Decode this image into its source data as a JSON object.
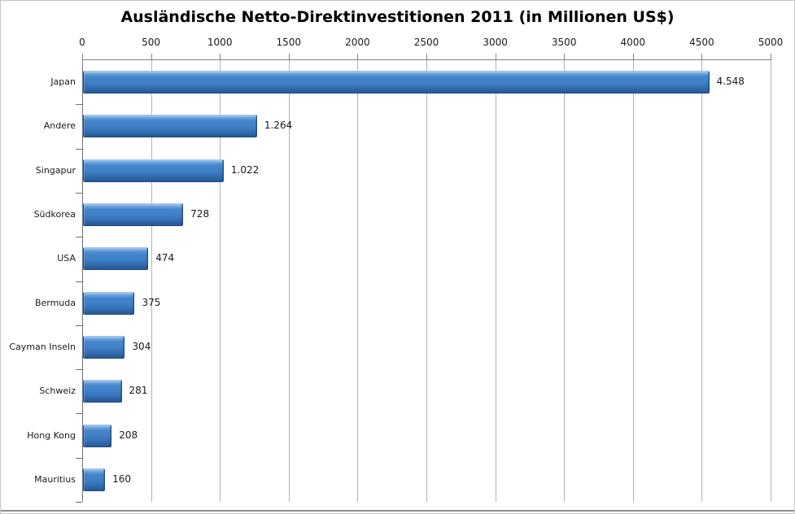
{
  "chart_data": {
    "type": "bar",
    "orientation": "horizontal",
    "title": "Ausländische Netto-Direktinvestitionen 2011 (in Millionen US$)",
    "categories": [
      "Japan",
      "Andere",
      "Singapur",
      "Südkorea",
      "USA",
      "Bermuda",
      "Cayman Inseln",
      "Schweiz",
      "Hong Kong",
      "Mauritius"
    ],
    "values": [
      4548,
      1264,
      1022,
      728,
      474,
      375,
      304,
      281,
      208,
      160
    ],
    "value_labels": [
      "4.548",
      "1.264",
      "1.022",
      "728",
      "474",
      "375",
      "304",
      "281",
      "208",
      "160"
    ],
    "xlabel": "",
    "ylabel": "",
    "xlim": [
      0,
      5000
    ],
    "x_ticks": [
      0,
      500,
      1000,
      1500,
      2000,
      2500,
      3000,
      3500,
      4000,
      4500,
      5000
    ],
    "x_tick_labels": [
      "0",
      "500",
      "1000",
      "1500",
      "2000",
      "2500",
      "3000",
      "3500",
      "4000",
      "4500",
      "5000"
    ],
    "grid": true,
    "legend": false,
    "axis_position": "top",
    "colors": {
      "bar_main": "#3f80c6",
      "bar_highlight": "#a6cbee",
      "bar_shadow": "#275892",
      "bar_outline": "#1f4e84",
      "gridline": "#b3b3b3",
      "axis": "#808080",
      "text": "#1a1a1a",
      "background": "#ffffff",
      "frame_border": "#c6c6c6"
    }
  }
}
